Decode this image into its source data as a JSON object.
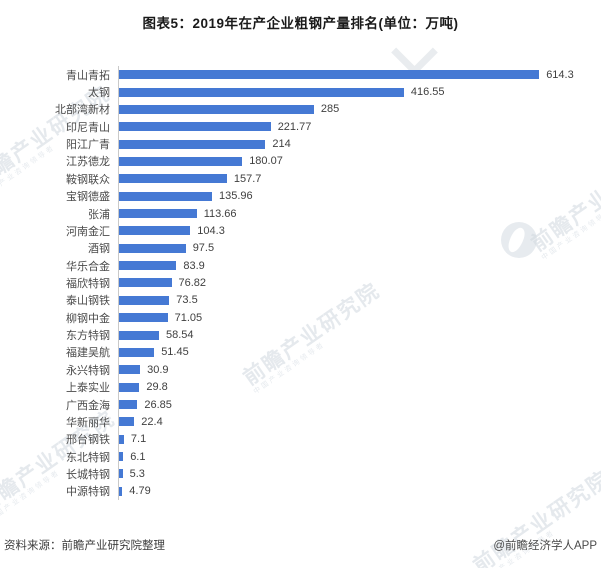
{
  "title": "图表5：2019年在产企业粗钢产量排名(单位：万吨)",
  "footer": {
    "source": "资料来源：前瞻产业研究院整理",
    "credit": "@前瞻经济学人APP"
  },
  "watermark": {
    "text": "前瞻产业研究院",
    "subtext": "中国产业咨询领导者",
    "logo": "qianzhan-logo"
  },
  "colors": {
    "bar": "#4579D4",
    "category_label": "#4a4a4a",
    "value_label": "#3f3f3f",
    "axis_line": "#c9c9c9",
    "watermark": "#c2ccd6"
  },
  "chart_data": {
    "type": "bar",
    "orientation": "horizontal",
    "title": "图表5：2019年在产企业粗钢产量排名(单位：万吨)",
    "unit": "万吨",
    "grid": false,
    "legend": false,
    "xlim": [
      0,
      700
    ],
    "categories": [
      "青山青拓",
      "太钢",
      "北部湾新材",
      "印尼青山",
      "阳江广青",
      "江苏德龙",
      "鞍钢联众",
      "宝钢德盛",
      "张浦",
      "河南金汇",
      "酒钢",
      "华乐合金",
      "福欣特钢",
      "泰山钢铁",
      "柳钢中金",
      "东方特钢",
      "福建吴航",
      "永兴特钢",
      "上泰实业",
      "广西金海",
      "华新丽华",
      "邢台钢铁",
      "东北特钢",
      "长城特钢",
      "中源特钢"
    ],
    "values": [
      614.3,
      416.55,
      285,
      221.77,
      214,
      180.07,
      157.7,
      135.96,
      113.66,
      104.3,
      97.5,
      83.9,
      76.82,
      73.5,
      71.05,
      58.54,
      51.45,
      30.9,
      29.8,
      26.85,
      22.4,
      7.1,
      6.1,
      5.3,
      4.79
    ],
    "value_labels": [
      "614.3",
      "416.55",
      "285",
      "221.77",
      "214",
      "180.07",
      "157.7",
      "135.96",
      "113.66",
      "104.3",
      "97.5",
      "83.9",
      "76.82",
      "73.5",
      "71.05",
      "58.54",
      "51.45",
      "30.9",
      "29.8",
      "26.85",
      "22.4",
      "7.1",
      "6.1",
      "5.3",
      "4.79"
    ]
  }
}
